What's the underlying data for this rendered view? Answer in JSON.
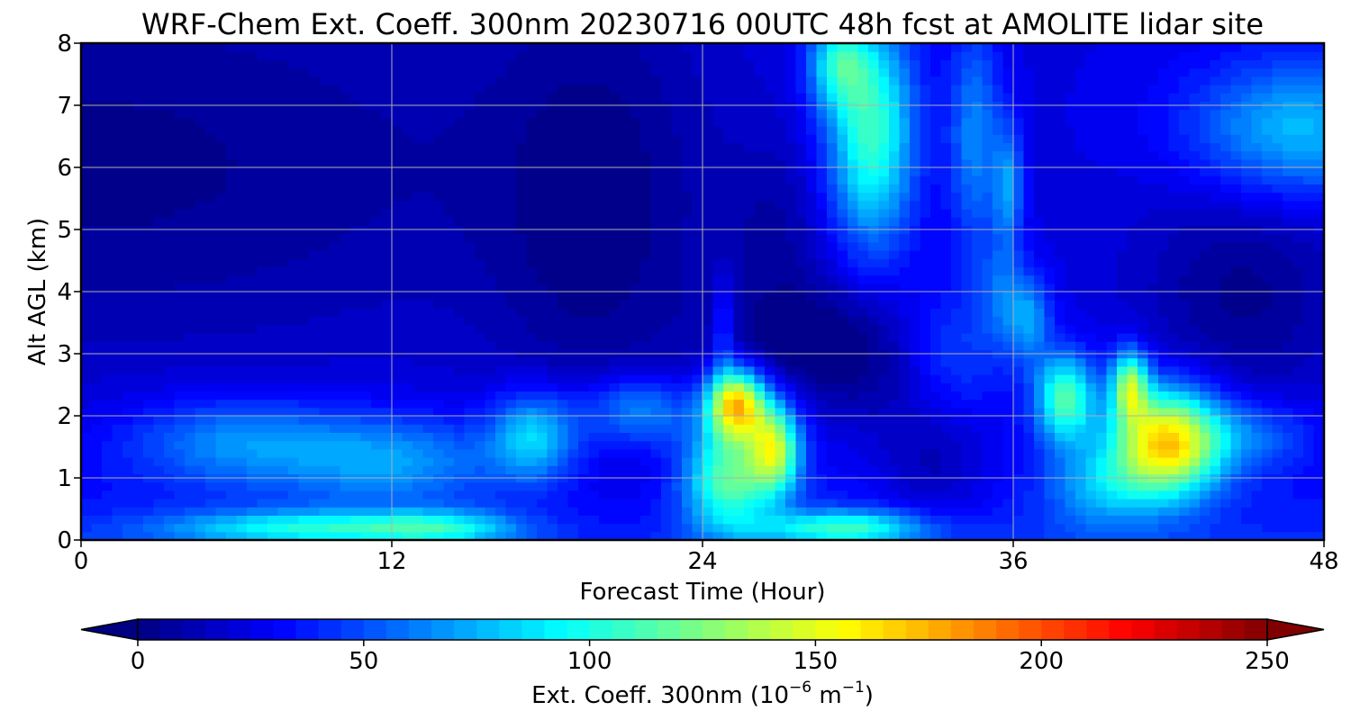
{
  "chart_data": {
    "type": "heatmap",
    "title": "WRF-Chem Ext. Coeff. 300nm  20230716 00UTC 48h fcst at AMOLITE lidar site",
    "xlabel": "Forecast Time (Hour)",
    "ylabel": "Alt AGL (km)",
    "xlim": [
      0,
      48
    ],
    "ylim": [
      0,
      8
    ],
    "xticks": [
      0,
      12,
      24,
      36,
      48
    ],
    "xtick_labels": [
      "0",
      "12",
      "24",
      "36",
      "48"
    ],
    "yticks": [
      0,
      1,
      2,
      3,
      4,
      5,
      6,
      7,
      8
    ],
    "ytick_labels": [
      "0",
      "1",
      "2",
      "3",
      "4",
      "5",
      "6",
      "7",
      "8"
    ],
    "grid": true,
    "colorbar": {
      "label": "Ext. Coeff. 300nm  (10",
      "label_exp1": "−6",
      "label_mid": " m",
      "label_exp2": "−1",
      "label_end": ")",
      "range": [
        0,
        250
      ],
      "ticks": [
        0,
        50,
        100,
        150,
        200,
        250
      ],
      "tick_labels": [
        "0",
        "50",
        "100",
        "150",
        "200",
        "250"
      ],
      "levels": 50,
      "colormap": "jet",
      "extend": "both",
      "orientation": "horizontal"
    },
    "features": [
      {
        "x": 0,
        "y": 6,
        "sx": 14,
        "sy": 2.5,
        "value": -22
      },
      {
        "x": 20,
        "y": 5,
        "sx": 3,
        "sy": 3,
        "value": -18
      },
      {
        "x": 28,
        "y": 3.2,
        "sx": 2.5,
        "sy": 0.7,
        "value": -22
      },
      {
        "x": 31,
        "y": 2.8,
        "sx": 2,
        "sy": 0.8,
        "value": -14
      },
      {
        "x": 33,
        "y": 1.2,
        "sx": 1.5,
        "sy": 0.8,
        "value": -18
      },
      {
        "x": 45,
        "y": 4,
        "sx": 3,
        "sy": 1.5,
        "value": -22
      },
      {
        "x": 27,
        "y": 5,
        "sx": 1.5,
        "sy": 1,
        "value": -12
      },
      {
        "x": 6,
        "y": 1.6,
        "sx": 3,
        "sy": 0.5,
        "value": 38
      },
      {
        "x": 12,
        "y": 1.3,
        "sx": 3,
        "sy": 0.5,
        "value": 40
      },
      {
        "x": 17.5,
        "y": 1.7,
        "sx": 1.2,
        "sy": 0.5,
        "value": 58
      },
      {
        "x": 21.5,
        "y": 2.1,
        "sx": 1.5,
        "sy": 0.4,
        "value": 45
      },
      {
        "x": 9,
        "y": 0.2,
        "sx": 4,
        "sy": 0.2,
        "value": 60
      },
      {
        "x": 14,
        "y": 0.2,
        "sx": 2,
        "sy": 0.2,
        "value": 40
      },
      {
        "x": 25.3,
        "y": 2.2,
        "sx": 0.8,
        "sy": 0.4,
        "value": 140
      },
      {
        "x": 25.0,
        "y": 1.0,
        "sx": 1.2,
        "sy": 0.6,
        "value": 85
      },
      {
        "x": 26.8,
        "y": 1.5,
        "sx": 0.7,
        "sy": 0.5,
        "value": 100
      },
      {
        "x": 24.8,
        "y": 3.4,
        "sx": 0.3,
        "sy": 0.6,
        "value": 30
      },
      {
        "x": 29.5,
        "y": 0.2,
        "sx": 2.2,
        "sy": 0.2,
        "value": 70
      },
      {
        "x": 30.5,
        "y": 6.6,
        "sx": 1.2,
        "sy": 1.3,
        "value": 85
      },
      {
        "x": 29.2,
        "y": 7.7,
        "sx": 0.8,
        "sy": 0.5,
        "value": 55
      },
      {
        "x": 34.5,
        "y": 6.5,
        "sx": 0.7,
        "sy": 1.3,
        "value": 40
      },
      {
        "x": 35.8,
        "y": 5.7,
        "sx": 0.4,
        "sy": 0.7,
        "value": 42
      },
      {
        "x": 35.5,
        "y": 4.0,
        "sx": 0.6,
        "sy": 0.6,
        "value": 25
      },
      {
        "x": 33.5,
        "y": 3.0,
        "sx": 1.5,
        "sy": 0.8,
        "value": 25
      },
      {
        "x": 38,
        "y": 2.3,
        "sx": 0.8,
        "sy": 0.5,
        "value": 85
      },
      {
        "x": 36.6,
        "y": 3.6,
        "sx": 0.6,
        "sy": 0.5,
        "value": 42
      },
      {
        "x": 42,
        "y": 1.6,
        "sx": 1.5,
        "sy": 0.6,
        "value": 140
      },
      {
        "x": 40.5,
        "y": 2.5,
        "sx": 0.5,
        "sy": 0.4,
        "value": 95
      },
      {
        "x": 39.5,
        "y": 0.9,
        "sx": 1.5,
        "sy": 0.5,
        "value": 40
      },
      {
        "x": 45.5,
        "y": 1.7,
        "sx": 1.5,
        "sy": 0.4,
        "value": 28
      },
      {
        "x": 47,
        "y": 6.6,
        "sx": 3,
        "sy": 0.8,
        "value": 55
      }
    ]
  }
}
